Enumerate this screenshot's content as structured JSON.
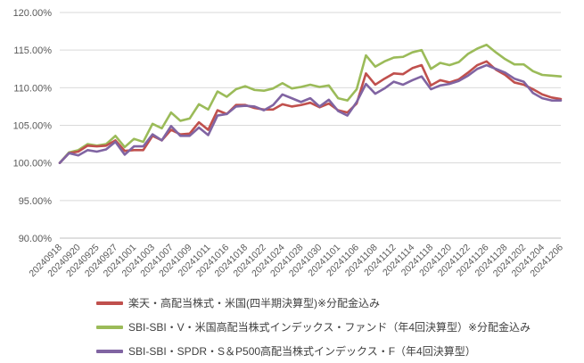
{
  "chart_data": {
    "type": "line",
    "title": "",
    "xlabel": "",
    "ylabel": "",
    "ylim": [
      90,
      120
    ],
    "yticks": [
      90,
      95,
      100,
      105,
      110,
      115,
      120
    ],
    "ytick_labels": [
      "90.00%",
      "95.00%",
      "100.00%",
      "105.00%",
      "110.00%",
      "115.00%",
      "120.00%"
    ],
    "grid": "horizontal",
    "legend_position": "bottom",
    "x_labels": [
      "20240918",
      "20240920",
      "20240925",
      "20240927",
      "20241001",
      "20241003",
      "20241007",
      "20241009",
      "20241011",
      "20241016",
      "20241018",
      "20241022",
      "20241024",
      "20241028",
      "20241030",
      "20241101",
      "20241106",
      "20241108",
      "20241112",
      "20241114",
      "20241118",
      "20241120",
      "20241122",
      "20241126",
      "20241128",
      "20241202",
      "20241204",
      "20241206"
    ],
    "series": [
      {
        "name": "楽天・高配当株式・米国(四半期決算型)※分配金込み",
        "color": "#c0504d",
        "values": [
          100.0,
          101.3,
          101.5,
          102.3,
          102.2,
          102.3,
          103.0,
          101.6,
          101.7,
          101.7,
          103.6,
          103.0,
          104.4,
          103.8,
          103.9,
          105.4,
          104.4,
          107.0,
          106.5,
          107.7,
          107.7,
          107.3,
          107.1,
          107.1,
          107.8,
          107.5,
          107.7,
          108.0,
          107.4,
          107.9,
          107.0,
          106.7,
          107.9,
          111.9,
          110.4,
          111.2,
          111.9,
          111.8,
          112.6,
          113.0,
          110.3,
          111.0,
          110.7,
          111.1,
          112.0,
          113.0,
          113.5,
          112.4,
          111.7,
          110.7,
          110.4,
          109.8,
          109.1,
          108.7,
          108.5
        ]
      },
      {
        "name": "SBI-SBI・V・米国高配当株式インデックス・ファンド（年4回決算型）※分配金込み",
        "color": "#9bbb59",
        "values": [
          100.0,
          101.4,
          101.7,
          102.5,
          102.3,
          102.5,
          103.6,
          102.1,
          103.2,
          102.8,
          105.2,
          104.6,
          106.7,
          105.6,
          105.9,
          107.8,
          107.1,
          109.5,
          108.8,
          109.8,
          110.2,
          109.7,
          109.6,
          109.9,
          110.6,
          109.9,
          110.1,
          110.4,
          110.1,
          110.3,
          108.6,
          108.3,
          109.8,
          114.3,
          112.8,
          113.5,
          114.0,
          114.1,
          114.7,
          115.0,
          112.5,
          113.3,
          113.0,
          113.4,
          114.5,
          115.2,
          115.7,
          114.7,
          113.8,
          113.1,
          113.1,
          112.2,
          111.7,
          111.6,
          111.5
        ]
      },
      {
        "name": "SBI-SBI・SPDR・S＆P500高配当株式インデックス・F（年4回決算型）",
        "color": "#8064a2",
        "values": [
          100.0,
          101.3,
          101.0,
          101.7,
          101.5,
          101.8,
          102.8,
          101.1,
          102.2,
          102.2,
          103.8,
          103.0,
          104.9,
          103.6,
          103.6,
          104.7,
          103.7,
          106.3,
          106.5,
          107.5,
          107.6,
          107.5,
          107.0,
          107.7,
          109.1,
          108.6,
          108.1,
          108.6,
          107.5,
          108.4,
          106.9,
          106.3,
          108.1,
          110.5,
          109.2,
          109.9,
          110.8,
          110.4,
          111.0,
          111.5,
          109.8,
          110.3,
          110.5,
          110.9,
          111.6,
          112.5,
          113.0,
          112.5,
          112.0,
          111.2,
          110.8,
          109.3,
          108.6,
          108.3,
          108.3
        ]
      }
    ]
  }
}
